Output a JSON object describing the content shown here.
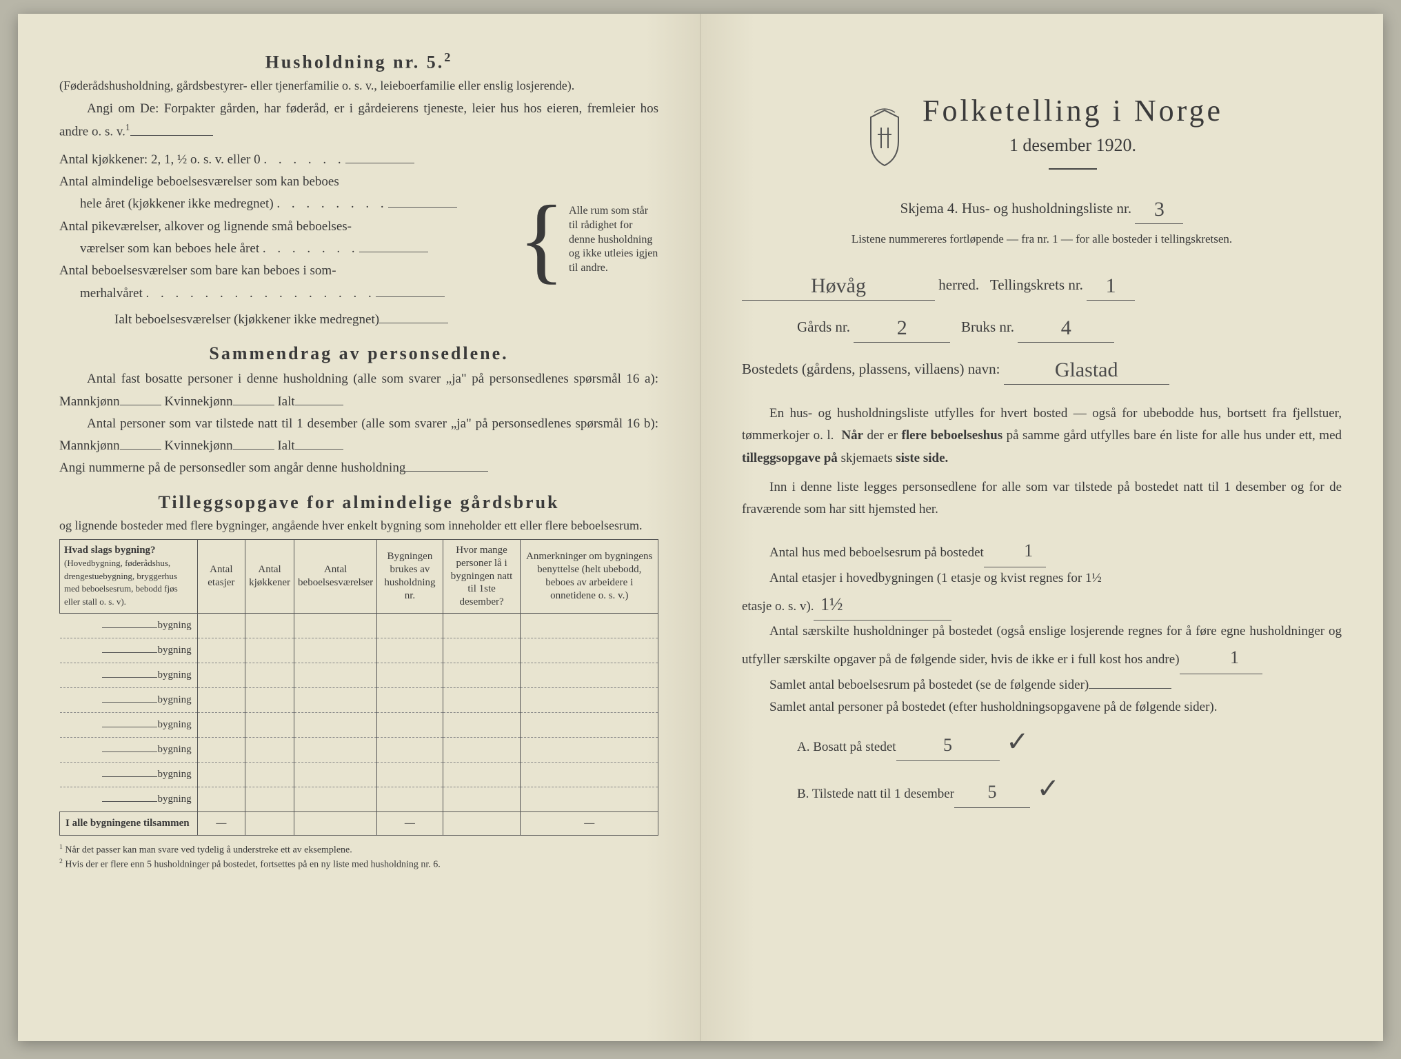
{
  "left": {
    "household_heading": "Husholdning nr. 5.",
    "household_sup": "2",
    "household_sub": "(Føderådshusholdning, gårdsbestyrer- eller tjenerfamilie o. s. v., leieboerfamilie eller enslig losjerende).",
    "household_instruction": "Angi om De: Forpakter gården, har føderåd, er i gårdeierens tjeneste, leier hus hos eieren, fremleier hos andre o. s. v.",
    "household_instruction_sup": "1",
    "rooms": {
      "l1": "Antal kjøkkener: 2, 1, ½ o. s. v. eller 0",
      "l2a": "Antal almindelige beboelsesværelser som kan beboes",
      "l2b": "hele året (kjøkkener ikke medregnet)",
      "l3a": "Antal pikeværelser, alkover og lignende små beboelses-",
      "l3b": "værelser som kan beboes hele året",
      "l4a": "Antal beboelsesværelser som bare kan beboes i som-",
      "l4b": "merhalvåret",
      "total": "Ialt beboelsesværelser  (kjøkkener ikke medregnet)",
      "brace_text": "Alle rum som står til rådighet for denne husholdning og ikke utleies igjen til andre."
    },
    "summary_heading": "Sammendrag av personsedlene.",
    "summary_l1": "Antal fast bosatte personer i denne husholdning (alle som svarer „ja\" på personsedlenes spørsmål 16 a): Mannkjønn",
    "summary_kv": "Kvinnekjønn",
    "summary_ialt": "Ialt",
    "summary_l2": "Antal personer som var tilstede natt til 1 desember (alle som svarer „ja\" på personsedlenes spørsmål 16 b): Mannkjønn",
    "summary_l3": "Angi nummerne på de personsedler som angår denne husholdning",
    "tillegg_heading": "Tilleggsopgave for almindelige gårdsbruk",
    "tillegg_sub": "og lignende bosteder med flere bygninger, angående hver enkelt bygning som inneholder ett eller flere beboelsesrum.",
    "table": {
      "h1": "Hvad slags bygning?",
      "h1_sub": "(Hovedbygning, føderådshus, drengestuebygning, bryggerhus med beboelsesrum, bebodd fjøs eller stall o. s. v).",
      "h2": "Antal etasjer",
      "h3": "Antal kjøkkener",
      "h4": "Antal beboelsesværelser",
      "h5": "Bygningen brukes av husholdning nr.",
      "h6": "Hvor mange personer lå i bygningen natt til 1ste desember?",
      "h7": "Anmerkninger om bygningens benyttelse (helt ubebodd, beboes av arbeidere i onnetidene o. s. v.)",
      "row_label": "bygning",
      "total_label": "I alle bygningene tilsammen"
    },
    "footnote1": "Når det passer kan man svare ved tydelig å understreke ett av eksemplene.",
    "footnote2": "Hvis der er flere enn 5 husholdninger på bostedet, fortsettes på en ny liste med husholdning nr. 6."
  },
  "right": {
    "title": "Folketelling i Norge",
    "date": "1 desember 1920.",
    "skjema": "Skjema 4.   Hus- og husholdningsliste nr.",
    "skjema_nr": "3",
    "list_note": "Listene nummereres fortløpende — fra nr. 1 — for alle bosteder i tellingskretsen.",
    "herred_value": "Høvåg",
    "herred_label": "herred.",
    "krets_label": "Tellingskrets nr.",
    "krets_value": "1",
    "gards_label": "Gårds nr.",
    "gards_value": "2",
    "bruks_label": "Bruks nr.",
    "bruks_value": "4",
    "bosted_label": "Bostedets (gårdens, plassens, villaens) navn:",
    "bosted_value": "Glastad",
    "para1": "En hus- og husholdningsliste utfylles for hvert bosted — også for ubebodde hus, bortsett fra fjellstuer, tømmerkojer o. l.  Når der er flere beboelseshus på samme gård utfylles bare én liste for alle hus under ett, med tilleggsopgave på skjemaets siste side.",
    "para2": "Inn i denne liste legges personsedlene for alle som var tilstede på bostedet natt til 1 desember og for de fraværende som har sitt hjemsted her.",
    "q1": "Antal hus med beboelsesrum på bostedet",
    "q1_value": "1",
    "q2a": "Antal etasjer i hovedbygningen (1 etasje og kvist regnes for 1½",
    "q2b": "etasje o. s. v).",
    "q2_value": "1½",
    "q3": "Antal særskilte husholdninger på bostedet (også enslige losjerende regnes for å føre egne husholdninger og utfyller særskilte opgaver på de følgende sider, hvis de ikke er i full kost hos andre)",
    "q3_value": "1",
    "q4": "Samlet antal beboelsesrum på bostedet (se de følgende sider)",
    "q5": "Samlet antal personer på bostedet (efter husholdningsopgavene på de følgende sider).",
    "qA": "A.  Bosatt på stedet",
    "qA_value": "5",
    "qB": "B.  Tilstede natt til 1 desember",
    "qB_value": "5",
    "checkmark": "✓"
  },
  "colors": {
    "paper": "#e8e4d0",
    "ink": "#3a3a3a",
    "pencil": "#4a4a4a"
  }
}
